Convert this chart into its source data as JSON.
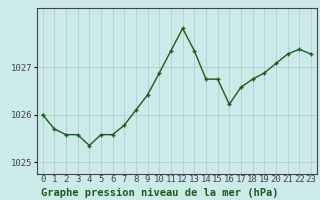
{
  "hours": [
    0,
    1,
    2,
    3,
    4,
    5,
    6,
    7,
    8,
    9,
    10,
    11,
    12,
    13,
    14,
    15,
    16,
    17,
    18,
    19,
    20,
    21,
    22,
    23
  ],
  "pressure": [
    1026.0,
    1025.7,
    1025.58,
    1025.58,
    1025.35,
    1025.58,
    1025.58,
    1025.78,
    1026.1,
    1026.42,
    1026.88,
    1027.35,
    1027.82,
    1027.35,
    1026.75,
    1026.75,
    1026.22,
    1026.58,
    1026.75,
    1026.88,
    1027.08,
    1027.28,
    1027.38,
    1027.28
  ],
  "line_color": "#1a5c1a",
  "marker": "+",
  "marker_size": 3.5,
  "marker_lw": 1.0,
  "bg_color": "#cceaea",
  "plot_bg_color": "#cceaea",
  "grid_color": "#aac8c8",
  "axis_color": "#444444",
  "title": "Graphe pression niveau de la mer (hPa)",
  "title_color": "#1a5c1a",
  "title_fontsize": 7.5,
  "ylim": [
    1024.75,
    1028.25
  ],
  "yticks": [
    1025,
    1026,
    1027
  ],
  "tick_fontsize": 6.5,
  "linewidth": 1.0
}
